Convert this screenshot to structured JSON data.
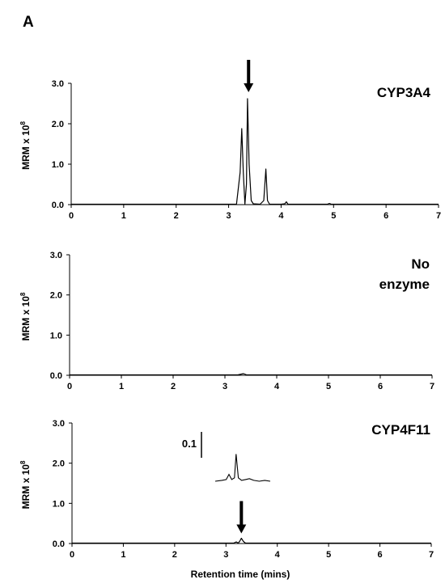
{
  "figure_label": "A",
  "chart_data": [
    {
      "type": "line",
      "panel_label": "CYP3A4",
      "ylabel": "MRM x 10",
      "ylabel_exp": "8",
      "xlim": [
        0,
        7
      ],
      "ylim": [
        0,
        3
      ],
      "xticks": [
        "0",
        "1",
        "2",
        "3",
        "4",
        "5",
        "6",
        "7"
      ],
      "yticks": [
        "0.0",
        "1.0",
        "2.0",
        "3.0"
      ],
      "arrow_x": 3.38,
      "series": [
        {
          "x": [
            0,
            1,
            2,
            3,
            3.15,
            3.22,
            3.25,
            3.28,
            3.31,
            3.34,
            3.36,
            3.39,
            3.43,
            3.47,
            3.6,
            3.67,
            3.71,
            3.74,
            3.78,
            3.82,
            4.0,
            4.07,
            4.1,
            4.13,
            4.5,
            4.88,
            4.92,
            4.96,
            6,
            7
          ],
          "y": [
            0.01,
            0.01,
            0.01,
            0.01,
            0.01,
            0.8,
            1.88,
            0.8,
            0.01,
            0.5,
            2.62,
            1.0,
            0.1,
            0.02,
            0.01,
            0.1,
            0.88,
            0.1,
            0.01,
            0.01,
            0.01,
            0.02,
            0.07,
            0.01,
            0.01,
            0.01,
            0.03,
            0.01,
            0.01,
            0.01
          ]
        }
      ]
    },
    {
      "type": "line",
      "panel_label_lines": [
        "No",
        "enzyme"
      ],
      "ylabel": "MRM x 10",
      "ylabel_exp": "8",
      "xlim": [
        0,
        7
      ],
      "ylim": [
        0,
        3
      ],
      "xticks": [
        "0",
        "1",
        "2",
        "3",
        "4",
        "5",
        "6",
        "7"
      ],
      "yticks": [
        "0.0",
        "1.0",
        "2.0",
        "3.0"
      ],
      "series": [
        {
          "x": [
            0,
            1,
            2,
            3,
            3.25,
            3.32,
            3.36,
            3.42,
            4,
            5,
            6,
            7
          ],
          "y": [
            0.01,
            0.01,
            0.01,
            0.01,
            0.01,
            0.03,
            0.04,
            0.01,
            0.01,
            0.01,
            0.01,
            0.01
          ]
        }
      ]
    },
    {
      "type": "line",
      "panel_label": "CYP4F11",
      "ylabel": "MRM x 10",
      "ylabel_exp": "8",
      "xlabel": "Retention time (mins)",
      "xlim": [
        0,
        7
      ],
      "ylim": [
        0,
        3
      ],
      "xticks": [
        "0",
        "1",
        "2",
        "3",
        "4",
        "5",
        "6",
        "7"
      ],
      "yticks": [
        "0.0",
        "1.0",
        "2.0",
        "3.0"
      ],
      "arrow_x": 3.3,
      "series": [
        {
          "x": [
            0,
            1,
            2,
            3,
            3.15,
            3.2,
            3.24,
            3.27,
            3.3,
            3.34,
            3.38,
            4,
            5,
            6,
            7
          ],
          "y": [
            0.01,
            0.01,
            0.01,
            0.01,
            0.01,
            0.04,
            0.01,
            0.06,
            0.13,
            0.05,
            0.01,
            0.01,
            0.01,
            0.01,
            0.01
          ]
        }
      ],
      "inset": {
        "scale_label": "0.1",
        "x": [
          0,
          0.12,
          0.2,
          0.25,
          0.3,
          0.35,
          0.38,
          0.42,
          0.48,
          0.55,
          0.62,
          0.7,
          0.8,
          0.9,
          1
        ],
        "y": [
          0.01,
          0.02,
          0.03,
          0.09,
          0.03,
          0.05,
          0.33,
          0.05,
          0.02,
          0.03,
          0.04,
          0.02,
          0.01,
          0.02,
          0.01
        ]
      }
    }
  ]
}
